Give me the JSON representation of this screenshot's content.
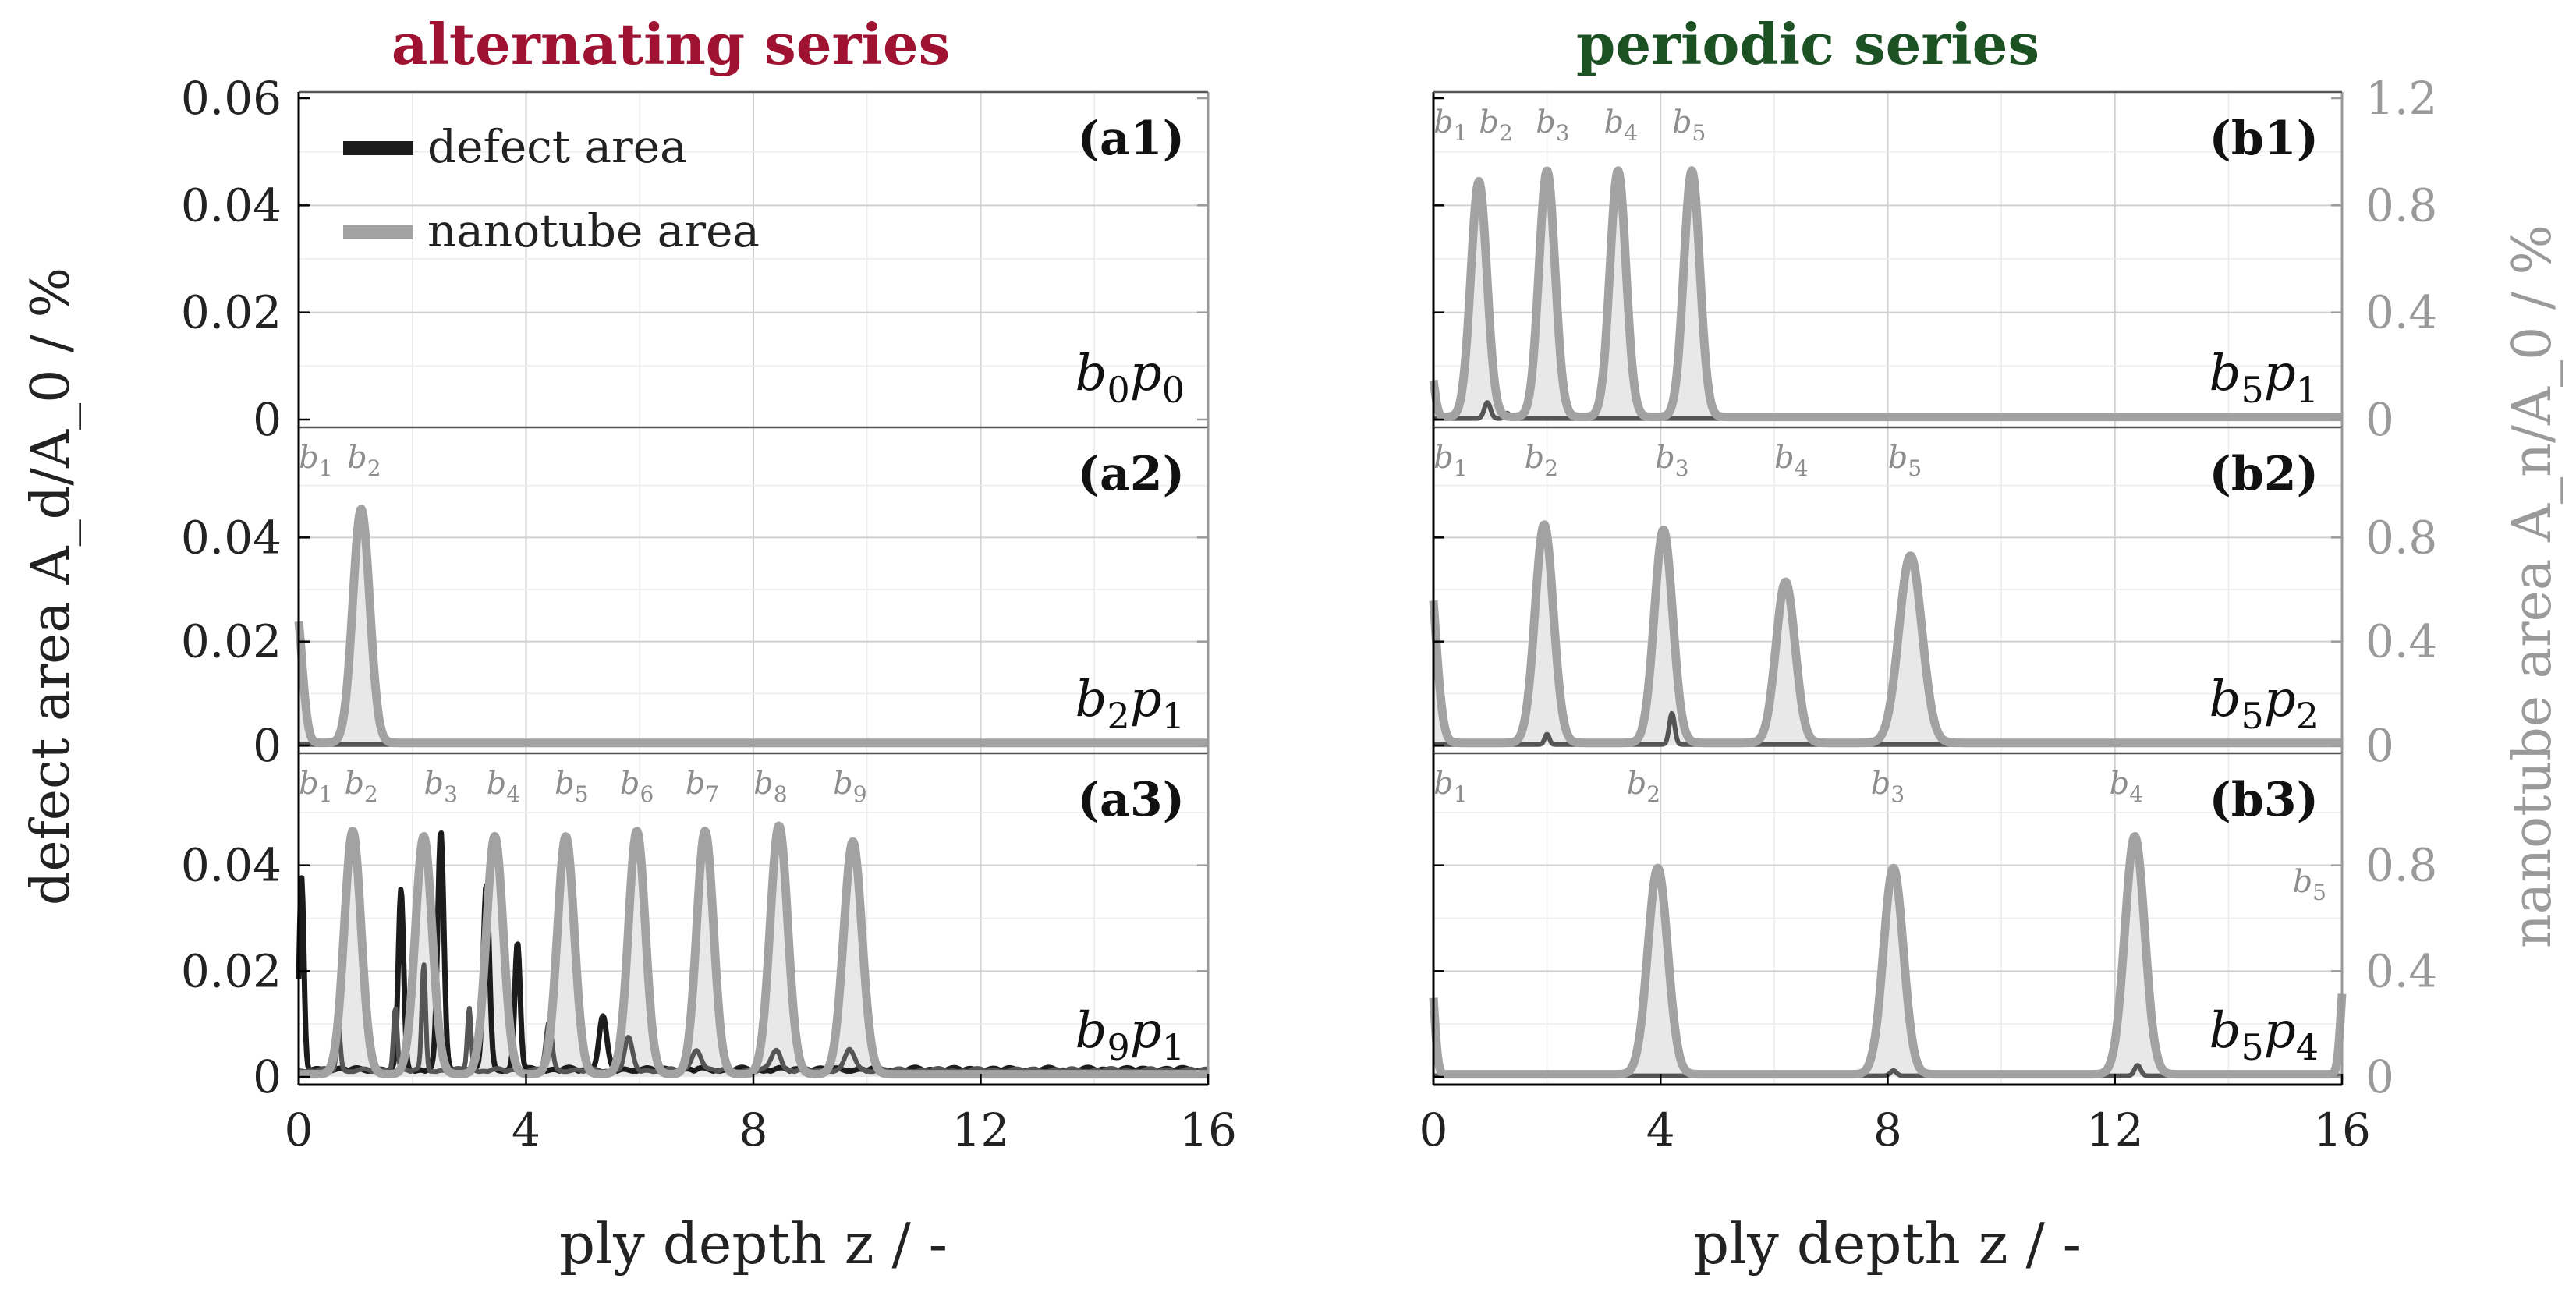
{
  "colors": {
    "defect_dark": "#1c1c1c",
    "defect_mid": "#555555",
    "nanotube": "#a2a2a2",
    "nanotube_fill": "#e8e8e8",
    "alt_title": "#a01232",
    "per_title": "#1c5223",
    "axis_right": "#9a9a9a",
    "text": "#222222"
  },
  "chart_data": {
    "type": "line",
    "figure": {
      "left_title": "alternating series",
      "right_title": "periodic series",
      "ylabel_left": "defect area A_d/A_0 / %",
      "ylabel_right": "nanotube area A_n/A_0 / %",
      "xlabel": "ply depth z / -",
      "legend": [
        {
          "label": "defect area",
          "series": "defect"
        },
        {
          "label": "nanotube area",
          "series": "nanotube"
        }
      ],
      "legend_placement": "top-left of panel a1",
      "x_ticks": [
        0,
        4,
        8,
        12,
        16
      ],
      "xlim": [
        0,
        16
      ],
      "left_ylim": [
        0,
        0.06
      ],
      "left_ticks": [
        "0",
        "0.02",
        "0.04",
        "0.06"
      ],
      "right_ylim": [
        0,
        1.2
      ],
      "right_ticks": [
        "0",
        "0.4",
        "0.8",
        "1.2"
      ],
      "grid": true
    },
    "panels": [
      {
        "id": "a1",
        "column": "left",
        "row": 0,
        "label": "(a1)",
        "config": "b0p0",
        "block_labels": [],
        "nanotube_peaks": [],
        "defect_peaks": []
      },
      {
        "id": "a2",
        "column": "left",
        "row": 1,
        "label": "(a2)",
        "config": "b2p1",
        "block_labels": [
          {
            "n": "1",
            "z": 0.3
          },
          {
            "n": "2",
            "z": 1.15
          }
        ],
        "nanotube_peaks": [
          {
            "z": -0.05,
            "h": 0.026,
            "w": 0.16
          },
          {
            "z": 1.1,
            "h": 0.045,
            "w": 0.22
          }
        ],
        "defect_peaks": []
      },
      {
        "id": "a3",
        "column": "left",
        "row": 2,
        "label": "(a3)",
        "config": "b9p1",
        "block_labels": [
          {
            "n": "1",
            "z": 0.3
          },
          {
            "n": "2",
            "z": 1.1
          },
          {
            "n": "3",
            "z": 2.5
          },
          {
            "n": "4",
            "z": 3.6
          },
          {
            "n": "5",
            "z": 4.8
          },
          {
            "n": "6",
            "z": 5.95
          },
          {
            "n": "7",
            "z": 7.1
          },
          {
            "n": "8",
            "z": 8.3
          },
          {
            "n": "9",
            "z": 9.7
          }
        ],
        "nanotube_peaks": [
          {
            "z": 0.95,
            "h": 0.046,
            "w": 0.22
          },
          {
            "z": 2.2,
            "h": 0.045,
            "w": 0.22
          },
          {
            "z": 3.45,
            "h": 0.045,
            "w": 0.22
          },
          {
            "z": 4.7,
            "h": 0.045,
            "w": 0.22
          },
          {
            "z": 5.95,
            "h": 0.046,
            "w": 0.22
          },
          {
            "z": 7.15,
            "h": 0.046,
            "w": 0.22
          },
          {
            "z": 8.45,
            "h": 0.047,
            "w": 0.23
          },
          {
            "z": 9.75,
            "h": 0.044,
            "w": 0.24
          }
        ],
        "defect_peaks": [
          {
            "z": 0.05,
            "h": 0.036,
            "w": 0.06,
            "dark": true
          },
          {
            "z": 1.8,
            "h": 0.034,
            "w": 0.07,
            "dark": true
          },
          {
            "z": 2.5,
            "h": 0.045,
            "w": 0.08,
            "dark": true
          },
          {
            "z": 3.3,
            "h": 0.035,
            "w": 0.08,
            "dark": true
          },
          {
            "z": 3.85,
            "h": 0.024,
            "w": 0.07,
            "dark": true
          },
          {
            "z": 5.35,
            "h": 0.01,
            "w": 0.1,
            "dark": true
          },
          {
            "z": 0.7,
            "h": 0.008,
            "w": 0.05,
            "dark": false
          },
          {
            "z": 1.7,
            "h": 0.012,
            "w": 0.05,
            "dark": false
          },
          {
            "z": 2.2,
            "h": 0.02,
            "w": 0.05,
            "dark": false
          },
          {
            "z": 3.0,
            "h": 0.012,
            "w": 0.05,
            "dark": false
          },
          {
            "z": 4.4,
            "h": 0.009,
            "w": 0.08,
            "dark": false
          },
          {
            "z": 5.8,
            "h": 0.006,
            "w": 0.1,
            "dark": false
          },
          {
            "z": 7.0,
            "h": 0.004,
            "w": 0.12,
            "dark": false
          },
          {
            "z": 8.4,
            "h": 0.004,
            "w": 0.12,
            "dark": false
          },
          {
            "z": 9.7,
            "h": 0.004,
            "w": 0.12,
            "dark": false
          }
        ]
      },
      {
        "id": "b1",
        "column": "right",
        "row": 0,
        "label": "(b1)",
        "config": "b5p1",
        "block_labels": [
          {
            "n": "1",
            "z": 0.3
          },
          {
            "n": "2",
            "z": 1.1
          },
          {
            "n": "3",
            "z": 2.1
          },
          {
            "n": "4",
            "z": 3.3
          },
          {
            "n": "5",
            "z": 4.5
          }
        ],
        "nanotube_peaks": [
          {
            "z": 0.8,
            "h": 0.044,
            "w": 0.21
          },
          {
            "z": 2.0,
            "h": 0.046,
            "w": 0.21
          },
          {
            "z": 3.25,
            "h": 0.046,
            "w": 0.21
          },
          {
            "z": 4.55,
            "h": 0.046,
            "w": 0.21
          },
          {
            "z": -0.05,
            "h": 0.009,
            "w": 0.1
          }
        ],
        "defect_peaks": [
          {
            "z": 0.95,
            "h": 0.003,
            "w": 0.08,
            "dark": false
          },
          {
            "z": 1.3,
            "h": 0.001,
            "w": 0.06,
            "dark": false
          }
        ]
      },
      {
        "id": "b2",
        "column": "right",
        "row": 1,
        "label": "(b2)",
        "config": "b5p2",
        "block_labels": [
          {
            "n": "1",
            "z": 0.3
          },
          {
            "n": "2",
            "z": 1.9
          },
          {
            "n": "3",
            "z": 4.2
          },
          {
            "n": "4",
            "z": 6.3
          },
          {
            "n": "5",
            "z": 8.3
          }
        ],
        "nanotube_peaks": [
          {
            "z": -0.1,
            "h": 0.036,
            "w": 0.2
          },
          {
            "z": 1.95,
            "h": 0.042,
            "w": 0.24
          },
          {
            "z": 4.05,
            "h": 0.041,
            "w": 0.24
          },
          {
            "z": 6.2,
            "h": 0.031,
            "w": 0.25
          },
          {
            "z": 8.4,
            "h": 0.036,
            "w": 0.3
          }
        ],
        "defect_peaks": [
          {
            "z": 2.0,
            "h": 0.002,
            "w": 0.06,
            "dark": false
          },
          {
            "z": 4.2,
            "h": 0.006,
            "w": 0.07,
            "dark": false
          }
        ]
      },
      {
        "id": "b3",
        "column": "right",
        "row": 2,
        "label": "(b3)",
        "config": "b5p4",
        "block_labels": [
          {
            "n": "1",
            "z": 0.3
          },
          {
            "n": "2",
            "z": 3.7
          },
          {
            "n": "3",
            "z": 8.0
          },
          {
            "n": "4",
            "z": 12.2
          },
          {
            "n": "5",
            "z": 15.5
          }
        ],
        "nanotube_peaks": [
          {
            "z": -0.05,
            "h": 0.019,
            "w": 0.1
          },
          {
            "z": 3.95,
            "h": 0.039,
            "w": 0.26
          },
          {
            "z": 8.1,
            "h": 0.039,
            "w": 0.26
          },
          {
            "z": 12.35,
            "h": 0.045,
            "w": 0.26
          },
          {
            "z": 16.05,
            "h": 0.02,
            "w": 0.1
          }
        ],
        "defect_peaks": [
          {
            "z": 12.4,
            "h": 0.002,
            "w": 0.08,
            "dark": false
          },
          {
            "z": 8.1,
            "h": 0.001,
            "w": 0.08,
            "dark": false
          }
        ]
      }
    ]
  }
}
